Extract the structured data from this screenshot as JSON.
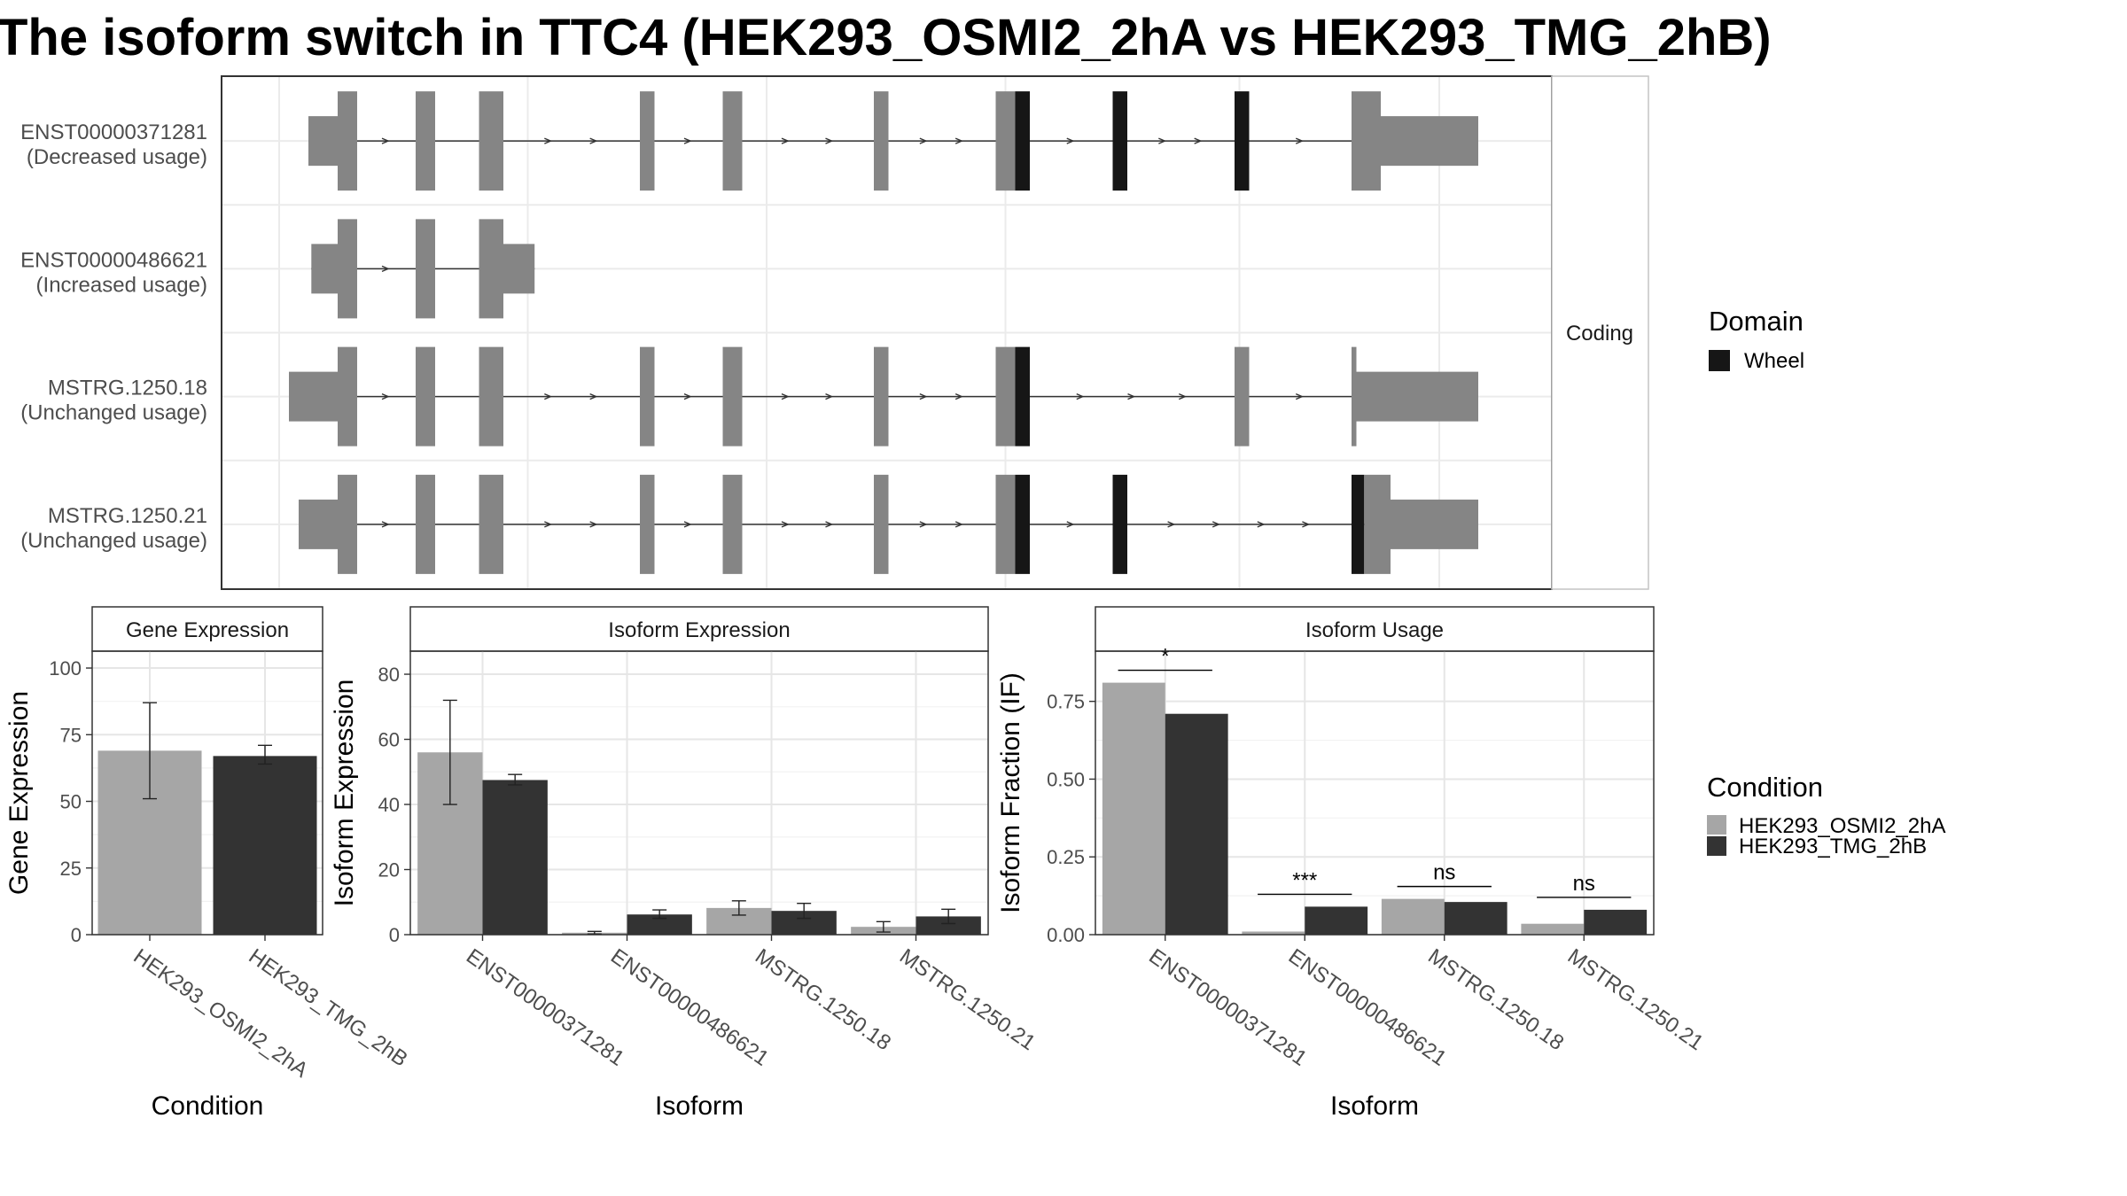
{
  "title": "The isoform switch in TTC4 (HEK293_OSMI2_2hA vs HEK293_TMG_2hB)",
  "colors": {
    "condition_a": "#a6a6a6",
    "condition_b": "#333333",
    "exon": "#858585",
    "domain": "#161616"
  },
  "chart_data": [
    {
      "type": "gene-structure",
      "facet_label": "Coding",
      "transcripts": [
        {
          "id": "ENST00000371281",
          "usage": "(Decreased usage)",
          "exons": [
            [
              30,
              60,
              "utr"
            ],
            [
              60,
              80,
              "cds"
            ],
            [
              140,
              160,
              "cds"
            ],
            [
              205,
              230,
              "cds"
            ],
            [
              370,
              385,
              "cds"
            ],
            [
              455,
              475,
              "cds"
            ],
            [
              610,
              625,
              "cds"
            ],
            [
              735,
              755,
              "cds"
            ],
            [
              755,
              770,
              "domain"
            ],
            [
              855,
              870,
              "domain"
            ],
            [
              980,
              995,
              "domain"
            ],
            [
              1100,
              1130,
              "cds"
            ],
            [
              1130,
              1230,
              "utr"
            ]
          ]
        },
        {
          "id": "ENST00000486621",
          "usage": "(Increased usage)",
          "exons": [
            [
              33,
              60,
              "utr"
            ],
            [
              60,
              80,
              "cds"
            ],
            [
              140,
              160,
              "cds"
            ],
            [
              205,
              230,
              "cds"
            ],
            [
              230,
              262,
              "utr"
            ]
          ]
        },
        {
          "id": "MSTRG.1250.18",
          "usage": "(Unchanged usage)",
          "exons": [
            [
              10,
              60,
              "utr"
            ],
            [
              60,
              80,
              "cds"
            ],
            [
              140,
              160,
              "cds"
            ],
            [
              205,
              230,
              "cds"
            ],
            [
              370,
              385,
              "cds"
            ],
            [
              455,
              475,
              "cds"
            ],
            [
              610,
              625,
              "cds"
            ],
            [
              735,
              755,
              "cds"
            ],
            [
              755,
              770,
              "domain"
            ],
            [
              980,
              995,
              "cds"
            ],
            [
              1100,
              1105,
              "cds"
            ],
            [
              1105,
              1230,
              "utr"
            ]
          ]
        },
        {
          "id": "MSTRG.1250.21",
          "usage": "(Unchanged usage)",
          "exons": [
            [
              20,
              60,
              "utr"
            ],
            [
              60,
              80,
              "cds"
            ],
            [
              140,
              160,
              "cds"
            ],
            [
              205,
              230,
              "cds"
            ],
            [
              370,
              385,
              "cds"
            ],
            [
              455,
              475,
              "cds"
            ],
            [
              610,
              625,
              "cds"
            ],
            [
              735,
              755,
              "cds"
            ],
            [
              755,
              770,
              "domain"
            ],
            [
              855,
              870,
              "domain"
            ],
            [
              1100,
              1113,
              "domain"
            ],
            [
              1113,
              1140,
              "cds"
            ],
            [
              1140,
              1230,
              "utr"
            ]
          ]
        }
      ],
      "legend": {
        "title": "Domain",
        "items": [
          {
            "label": "Wheel",
            "color": "#161616"
          }
        ]
      }
    },
    {
      "type": "bar",
      "strip_title": "Gene Expression",
      "xlabel": "Condition",
      "ylabel": "Gene Expression",
      "ylim": [
        0,
        105
      ],
      "yticks": [
        0,
        25,
        50,
        75,
        100
      ],
      "categories": [
        "HEK293_OSMI2_2hA",
        "HEK293_TMG_2hB"
      ],
      "values": [
        69,
        67
      ],
      "errors": [
        [
          51,
          87
        ],
        [
          64,
          71
        ]
      ]
    },
    {
      "type": "bar",
      "strip_title": "Isoform Expression",
      "xlabel": "Isoform",
      "ylabel": "Isoform Expression",
      "ylim": [
        0,
        86
      ],
      "yticks": [
        0,
        20,
        40,
        60,
        80
      ],
      "categories": [
        "ENST00000371281",
        "ENST00000486621",
        "MSTRG.1250.18",
        "MSTRG.1250.21"
      ],
      "series": [
        {
          "name": "HEK293_OSMI2_2hA",
          "values": [
            56,
            0.6,
            8.2,
            2.4
          ],
          "errors": [
            [
              40,
              72
            ],
            [
              0.2,
              1
            ],
            [
              6,
              10.4
            ],
            [
              0.8,
              4
            ]
          ]
        },
        {
          "name": "HEK293_TMG_2hB",
          "values": [
            47.5,
            6.2,
            7.3,
            5.6
          ],
          "errors": [
            [
              46,
              49.2
            ],
            [
              5,
              7.6
            ],
            [
              5,
              9.6
            ],
            [
              3.4,
              7.8
            ]
          ]
        }
      ]
    },
    {
      "type": "bar",
      "strip_title": "Isoform Usage",
      "xlabel": "Isoform",
      "ylabel": "Isoform Fraction (IF)",
      "ylim": [
        0,
        0.9
      ],
      "yticks": [
        "0.00",
        "0.25",
        "0.50",
        "0.75"
      ],
      "categories": [
        "ENST00000371281",
        "ENST00000486621",
        "MSTRG.1250.18",
        "MSTRG.1250.21"
      ],
      "series": [
        {
          "name": "HEK293_OSMI2_2hA",
          "values": [
            0.81,
            0.01,
            0.115,
            0.035
          ]
        },
        {
          "name": "HEK293_TMG_2hB",
          "values": [
            0.71,
            0.09,
            0.105,
            0.08
          ]
        }
      ],
      "significance": [
        "*",
        "***",
        "ns",
        "ns"
      ],
      "legend": {
        "title": "Condition",
        "items": [
          "HEK293_OSMI2_2hA",
          "HEK293_TMG_2hB"
        ]
      }
    }
  ]
}
